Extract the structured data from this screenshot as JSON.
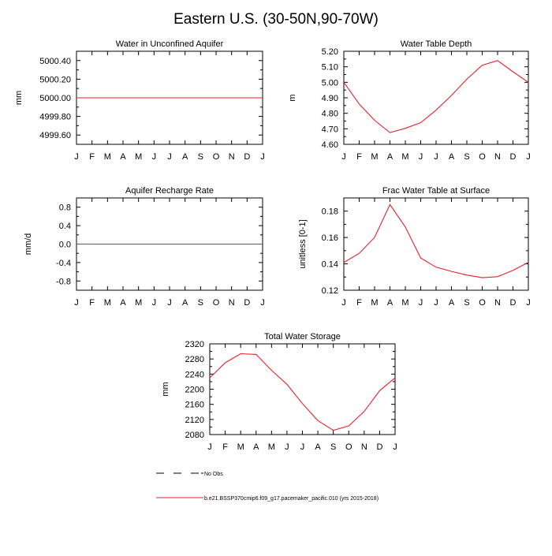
{
  "page": {
    "title": "Eastern U.S. (30-50N,90-70W)"
  },
  "months": [
    "J",
    "F",
    "M",
    "A",
    "M",
    "J",
    "J",
    "A",
    "S",
    "O",
    "N",
    "D",
    "J"
  ],
  "colors": {
    "model": "#e8202a",
    "axis": "#000000",
    "obs": "#000000"
  },
  "legend": {
    "obs_label": "No Obs",
    "model_label": "b.e21.BSSP370cmip6.f09_g17.pacemaker_pacific.010 (yrs 2015-2018)"
  },
  "chart_data": [
    {
      "id": "unconfined",
      "type": "line",
      "title": "Water in Unconfined Aquifer",
      "ylabel": "mm",
      "ylim": [
        4999.5,
        5000.5
      ],
      "yticks": [
        4999.6,
        4999.8,
        5000.0,
        5000.2,
        5000.4
      ],
      "ytick_labels": [
        "4999.60",
        "4999.80",
        "5000.00",
        "5000.20",
        "5000.40"
      ],
      "x": [
        0,
        1,
        2,
        3,
        4,
        5,
        6,
        7,
        8,
        9,
        10,
        11,
        12
      ],
      "values": [
        5000,
        5000,
        5000,
        5000,
        5000,
        5000,
        5000,
        5000,
        5000,
        5000,
        5000,
        5000,
        5000
      ]
    },
    {
      "id": "wtdepth",
      "type": "line",
      "title": "Water Table Depth",
      "ylabel": "m",
      "ylim": [
        4.6,
        5.2
      ],
      "yticks": [
        4.6,
        4.7,
        4.8,
        4.9,
        5.0,
        5.1,
        5.2
      ],
      "ytick_labels": [
        "4.60",
        "4.70",
        "4.80",
        "4.90",
        "5.00",
        "5.10",
        "5.20"
      ],
      "x": [
        0,
        1,
        2,
        3,
        4,
        5,
        6,
        7,
        8,
        9,
        10,
        11,
        12
      ],
      "values": [
        5.0,
        4.86,
        4.755,
        4.675,
        4.703,
        4.74,
        4.82,
        4.915,
        5.02,
        5.11,
        5.14,
        5.068,
        5.0
      ]
    },
    {
      "id": "recharge",
      "type": "line",
      "title": "Aquifer Recharge Rate",
      "ylabel": "mm/d",
      "ylim": [
        -1.0,
        1.0
      ],
      "yticks": [
        -0.8,
        -0.4,
        0.0,
        0.4,
        0.8
      ],
      "ytick_labels": [
        "-0.8",
        "-0.4",
        "0.0",
        "0.4",
        "0.8"
      ],
      "x": [
        0,
        1,
        2,
        3,
        4,
        5,
        6,
        7,
        8,
        9,
        10,
        11,
        12
      ],
      "values": [
        0,
        0,
        0,
        0,
        0,
        0,
        0,
        0,
        0,
        0,
        0,
        0,
        0
      ]
    },
    {
      "id": "fwt",
      "type": "line",
      "title": "Frac Water Table at Surface",
      "ylabel": "unitless [0-1]",
      "ylim": [
        0.12,
        0.19
      ],
      "yticks": [
        0.12,
        0.14,
        0.16,
        0.18
      ],
      "ytick_labels": [
        "0.12",
        "0.14",
        "0.16",
        "0.18"
      ],
      "x": [
        0,
        1,
        2,
        3,
        4,
        5,
        6,
        7,
        8,
        9,
        10,
        11,
        12
      ],
      "values": [
        0.141,
        0.148,
        0.16,
        0.185,
        0.168,
        0.1445,
        0.1375,
        0.1343,
        0.1315,
        0.1295,
        0.1303,
        0.135,
        0.1412
      ]
    },
    {
      "id": "tws",
      "type": "line",
      "title": "Total Water Storage",
      "ylabel": "mm",
      "ylim": [
        2080,
        2320
      ],
      "yticks": [
        2080,
        2120,
        2160,
        2200,
        2240,
        2280,
        2320
      ],
      "ytick_labels": [
        "2080",
        "2120",
        "2160",
        "2200",
        "2240",
        "2280",
        "2320"
      ],
      "x": [
        0,
        1,
        2,
        3,
        4,
        5,
        6,
        7,
        8,
        9,
        10,
        11,
        12
      ],
      "values": [
        2230,
        2270,
        2294,
        2292,
        2250,
        2213,
        2162,
        2117,
        2091,
        2103,
        2141,
        2196,
        2230
      ]
    }
  ]
}
